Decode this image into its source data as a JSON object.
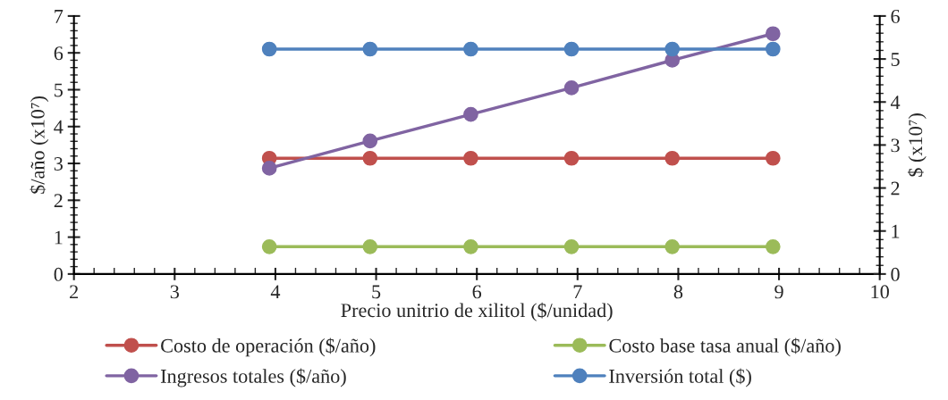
{
  "chart_data": {
    "type": "line",
    "xlabel": "Precio unitrio de xilitol ($/unidad)",
    "ylabel": "$/año (x10⁷)",
    "y2label": "$ (x10⁷)",
    "x": [
      3.94,
      4.94,
      5.94,
      6.94,
      7.94,
      8.94
    ],
    "xlim": [
      2,
      10
    ],
    "xticks": [
      2,
      3,
      4,
      5,
      6,
      7,
      8,
      9,
      10
    ],
    "ylim": [
      0,
      7
    ],
    "yticks": [
      0,
      1,
      2,
      3,
      4,
      5,
      6,
      7
    ],
    "y2lim": [
      0,
      6
    ],
    "y2ticks": [
      0,
      1,
      2,
      3,
      4,
      5,
      6
    ],
    "marker": "circle",
    "line_style": "solid",
    "grid": false,
    "legend": "bottom",
    "series": [
      {
        "name": "Costo de operación ($/año)",
        "color": "#c0504d",
        "values": [
          3.14,
          3.14,
          3.14,
          3.14,
          3.14,
          3.14
        ]
      },
      {
        "name": "Costo base tasa anual ($/año)",
        "color": "#9bbb59",
        "values": [
          0.74,
          0.74,
          0.74,
          0.74,
          0.74,
          0.74
        ]
      },
      {
        "name": "Ingresos totales ($/año)",
        "color": "#8064a2",
        "values": [
          2.87,
          3.61,
          4.33,
          5.05,
          5.8,
          6.52
        ]
      },
      {
        "name": "Inversión total ($)",
        "color": "#4f81bd",
        "axis": "y2",
        "values": [
          5.23,
          5.23,
          5.23,
          5.23,
          5.23,
          5.23
        ]
      }
    ]
  }
}
